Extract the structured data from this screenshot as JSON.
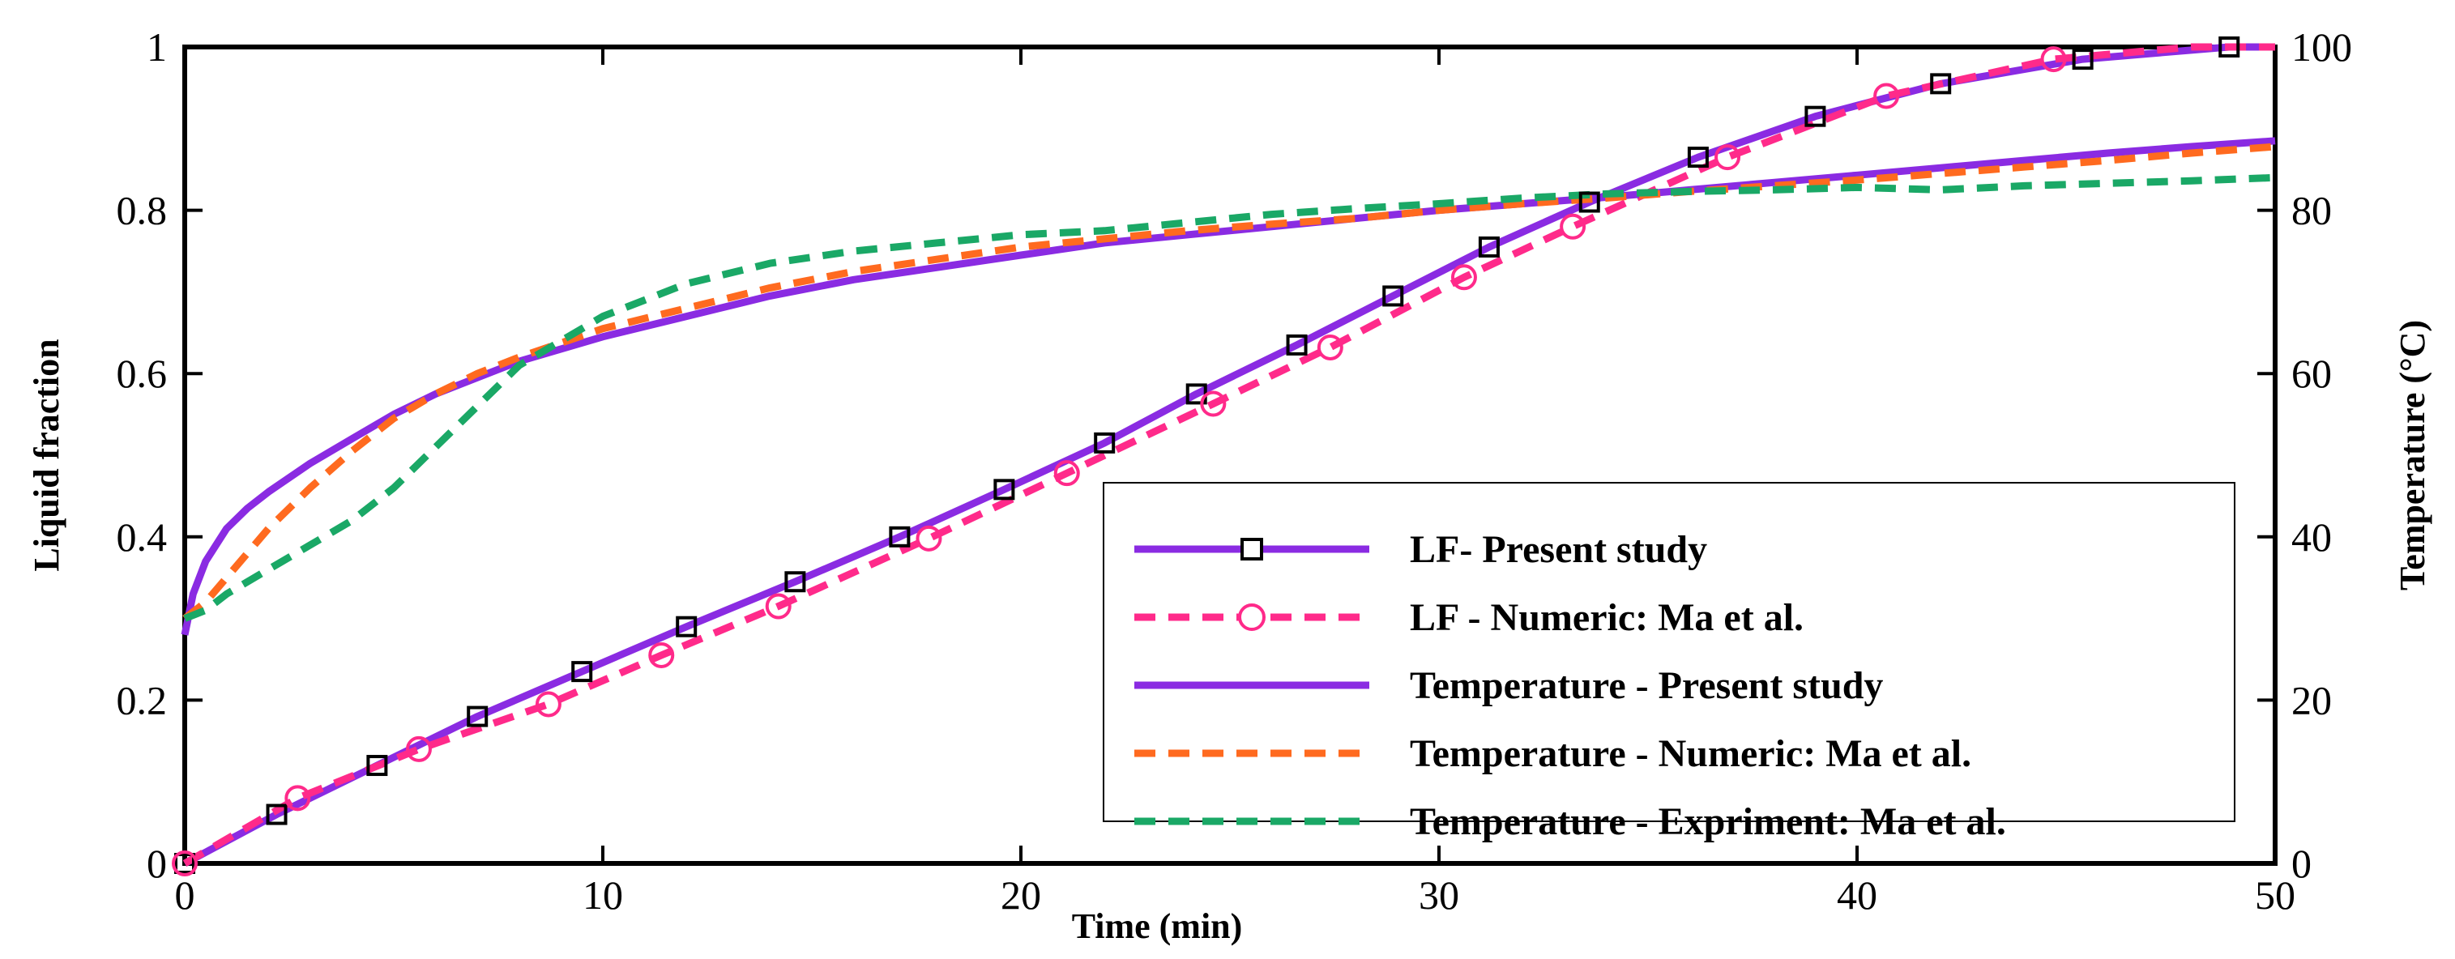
{
  "chart_data": {
    "type": "line",
    "xlabel": "Time (min)",
    "ylabel_left": "Liquid fraction",
    "ylabel_right": "Temperature (°C)",
    "xlim": [
      0,
      50
    ],
    "ylim_left": [
      0,
      1
    ],
    "ylim_right": [
      0,
      100
    ],
    "x_ticks": [
      0,
      10,
      20,
      30,
      40,
      50
    ],
    "y_ticks_left": [
      0,
      0.2,
      0.4,
      0.6,
      0.8,
      1
    ],
    "y_ticks_right": [
      0,
      20,
      40,
      60,
      80,
      100
    ],
    "grid": false,
    "legend_position": "bottom-right",
    "series": [
      {
        "name": "LF- Present study",
        "axis": "left",
        "color": "#8a2be2",
        "line": "solid",
        "marker": "square",
        "x": [
          0,
          2.2,
          4.6,
          7.0,
          9.5,
          12.0,
          14.6,
          17.1,
          19.6,
          22.0,
          24.2,
          26.6,
          28.9,
          31.2,
          33.6,
          36.2,
          39.0,
          42.0,
          45.4,
          48.9,
          50
        ],
        "y": [
          0,
          0.06,
          0.12,
          0.18,
          0.235,
          0.29,
          0.345,
          0.4,
          0.458,
          0.515,
          0.575,
          0.635,
          0.695,
          0.755,
          0.81,
          0.865,
          0.915,
          0.955,
          0.985,
          1.0,
          1.0
        ],
        "marker_x": [
          0,
          2.2,
          4.6,
          7.0,
          9.5,
          12.0,
          14.6,
          17.1,
          19.6,
          22.0,
          24.2,
          26.6,
          28.9,
          31.2,
          33.6,
          36.2,
          39.0,
          42.0,
          45.4,
          48.9
        ]
      },
      {
        "name": "LF - Numeric: Ma et al.",
        "axis": "left",
        "color": "#ff2a8a",
        "line": "dashed",
        "marker": "circle",
        "x": [
          0,
          2.7,
          5.6,
          8.7,
          11.4,
          14.2,
          17.8,
          21.1,
          24.6,
          27.4,
          30.6,
          33.2,
          36.9,
          40.7,
          44.7,
          48.0,
          50
        ],
        "y": [
          0,
          0.08,
          0.14,
          0.195,
          0.255,
          0.315,
          0.398,
          0.478,
          0.563,
          0.632,
          0.718,
          0.78,
          0.865,
          0.94,
          0.985,
          1.0,
          1.0
        ],
        "marker_x": [
          0,
          2.7,
          5.6,
          8.7,
          11.4,
          14.2,
          17.8,
          21.1,
          24.6,
          27.4,
          30.6,
          33.2,
          36.9,
          40.7,
          44.7
        ]
      },
      {
        "name": "Temperature - Present study",
        "axis": "right",
        "color": "#8a2be2",
        "line": "solid",
        "marker": "none",
        "x": [
          0,
          0.2,
          0.5,
          1,
          1.5,
          2,
          3,
          4,
          5,
          6,
          7,
          8,
          10,
          12,
          14,
          16,
          18,
          20,
          22,
          24,
          26,
          28,
          30,
          32,
          34,
          36,
          38,
          40,
          42,
          44,
          46,
          48,
          50
        ],
        "y": [
          28,
          33,
          37,
          41,
          43.5,
          45.5,
          49,
          52,
          55,
          57.5,
          59.5,
          61.5,
          64.5,
          67,
          69.5,
          71.5,
          73,
          74.5,
          76,
          77,
          78,
          79,
          80,
          80.8,
          81.6,
          82.5,
          83.4,
          84.3,
          85.2,
          86.1,
          87,
          87.8,
          88.5
        ]
      },
      {
        "name": "Temperature - Numeric: Ma et al.",
        "axis": "right",
        "color": "#ff6a1f",
        "line": "dashed",
        "marker": "none",
        "x": [
          0,
          0.5,
          1,
          2,
          3,
          4,
          5,
          6,
          7,
          8,
          10,
          12,
          14,
          16,
          18,
          20,
          22,
          24,
          26,
          28,
          30,
          32,
          34,
          36,
          38,
          40,
          42,
          44,
          46,
          48,
          50
        ],
        "y": [
          30,
          32,
          35,
          41,
          46,
          50.5,
          54.5,
          57.5,
          60,
          62,
          65.5,
          68,
          70.5,
          72.5,
          74,
          75.5,
          76.5,
          77.5,
          78.3,
          79,
          80,
          80.8,
          81.5,
          82.3,
          83,
          83.7,
          84.5,
          85.3,
          86.1,
          87,
          87.8
        ]
      },
      {
        "name": "Temperature - Expriment: Ma et al.",
        "axis": "right",
        "color": "#1aa866",
        "line": "dashed",
        "marker": "none",
        "x": [
          0,
          0.5,
          1,
          2,
          3,
          4,
          5,
          6,
          7,
          8,
          9,
          10,
          11,
          12,
          14,
          16,
          18,
          20,
          22,
          24,
          26,
          28,
          30,
          32,
          34,
          36,
          38,
          40,
          42,
          44,
          46,
          48,
          50
        ],
        "y": [
          30,
          31,
          33,
          36,
          39,
          42,
          46,
          51,
          56,
          61,
          64,
          67,
          69,
          71,
          73.5,
          75,
          76,
          77,
          77.5,
          78.5,
          79.5,
          80.2,
          80.8,
          81.5,
          82,
          82.3,
          82.5,
          82.8,
          82.5,
          83,
          83.3,
          83.6,
          84
        ]
      }
    ]
  }
}
